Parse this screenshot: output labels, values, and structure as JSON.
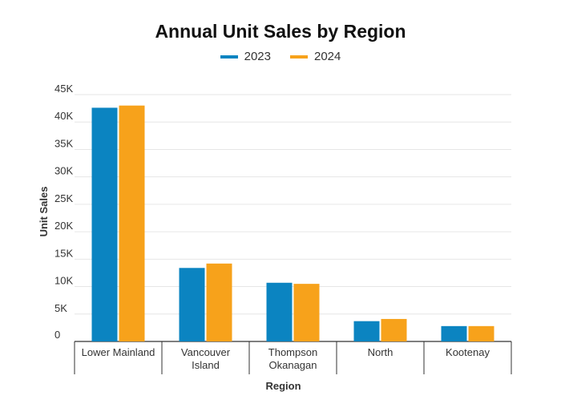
{
  "chart_data": {
    "type": "bar",
    "title": "Annual Unit Sales by Region",
    "xlabel": "Region",
    "ylabel": "Unit Sales",
    "categories": [
      [
        "Lower Mainland"
      ],
      [
        "Vancouver",
        "Island"
      ],
      [
        "Thompson",
        "Okanagan"
      ],
      [
        "North"
      ],
      [
        "Kootenay"
      ]
    ],
    "series": [
      {
        "name": "2023",
        "color": "#0b84c1",
        "values": [
          42600,
          13400,
          10700,
          3700,
          2800
        ]
      },
      {
        "name": "2024",
        "color": "#f7a21b",
        "values": [
          43000,
          14200,
          10500,
          4100,
          2800
        ]
      }
    ],
    "ylim": [
      0,
      45000
    ],
    "yticks": [
      {
        "value": 0,
        "label": "0"
      },
      {
        "value": 5000,
        "label": "5K"
      },
      {
        "value": 10000,
        "label": "10K"
      },
      {
        "value": 15000,
        "label": "15K"
      },
      {
        "value": 20000,
        "label": "20K"
      },
      {
        "value": 25000,
        "label": "25K"
      },
      {
        "value": 30000,
        "label": "30K"
      },
      {
        "value": 35000,
        "label": "35K"
      },
      {
        "value": 40000,
        "label": "40K"
      },
      {
        "value": 45000,
        "label": "45K"
      }
    ],
    "grid": true,
    "legend_position": "top-center"
  }
}
